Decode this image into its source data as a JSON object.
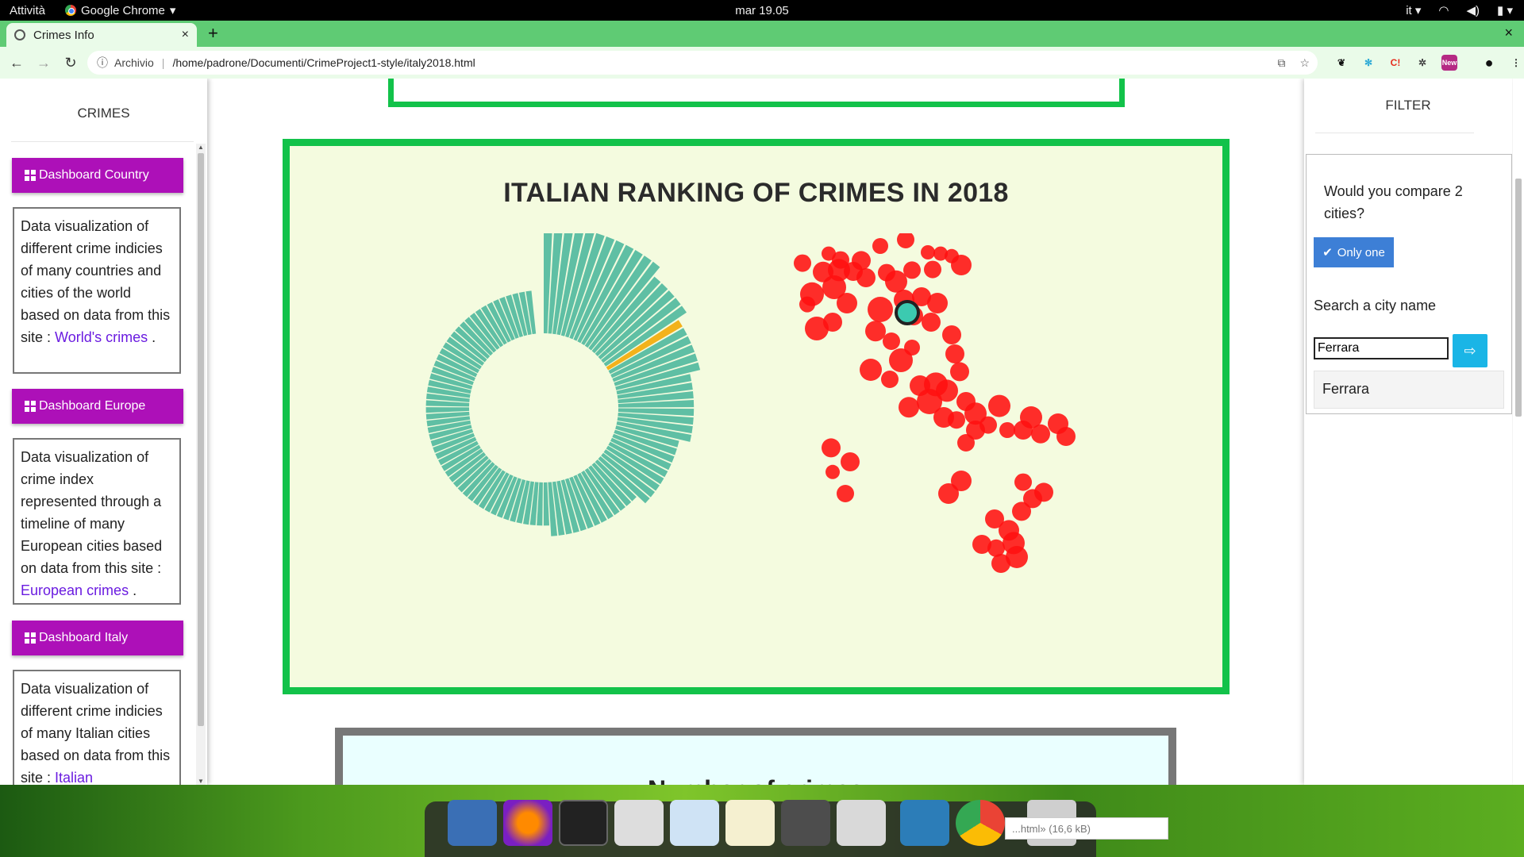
{
  "topbar": {
    "activities": "Attività",
    "app": "Google Chrome",
    "clock": "mar 19.05",
    "lang": "it"
  },
  "browser": {
    "tab_title": "Crimes Info",
    "secure_label": "Archivio",
    "url": "/home/padrone/Documenti/CrimeProject1-style/italy2018.html",
    "new_tab": "+",
    "close": "×"
  },
  "sidebar": {
    "title": "CRIMES",
    "items": [
      {
        "label": "Dashboard Country",
        "desc": "Data visualization of different crime indicies of many countries and cities of the world based on data from this site :",
        "link": "World's crimes",
        "tail": " ."
      },
      {
        "label": "Dashboard Europe",
        "desc": "Data visualization of crime index represented through a timeline of many European cities based on data from this site :",
        "link": "European crimes",
        "tail": " ."
      },
      {
        "label": "Dashboard Italy",
        "desc": "Data visualization of different crime indicies of many Italian cities based on data from this site :",
        "link": "Italian",
        "tail": ""
      }
    ]
  },
  "main": {
    "chart_title": "ITALIAN RANKING OF CRIMES IN 2018",
    "bottom_title": "Number of crimes",
    "colors": {
      "bars": "#5fbfa4",
      "highlight": "#f3b21b",
      "dots": "#ff1010",
      "selected": "#3ccab0",
      "frame": "#12c24a"
    }
  },
  "chart_data": {
    "type": "bar",
    "layout": "radial",
    "bar_count": 106,
    "highlight_index": 17,
    "highlighted_city": "Ferrara",
    "values": [
      10,
      10,
      10,
      10,
      10,
      10,
      10,
      10,
      10,
      10,
      10,
      10,
      9,
      9,
      9,
      9,
      9,
      8,
      8,
      8,
      8,
      8,
      8,
      7,
      7,
      7,
      7,
      7,
      7,
      7,
      7,
      6,
      6,
      6,
      6,
      6,
      6,
      6,
      6,
      6,
      5,
      5,
      5,
      5,
      5,
      5,
      5,
      5,
      5,
      5,
      5,
      5,
      5,
      4,
      4,
      4,
      4,
      4,
      4,
      4,
      4,
      4,
      4,
      4,
      4,
      4,
      4,
      4,
      4,
      4,
      4,
      4,
      4,
      4,
      4,
      4,
      4,
      4,
      4,
      4,
      4,
      4,
      4,
      4,
      4,
      4,
      4,
      4,
      4,
      4,
      4,
      4,
      4,
      4,
      4,
      4,
      4,
      4,
      4,
      4,
      4,
      4,
      4,
      4,
      4,
      4
    ],
    "title": "ITALIAN RANKING OF CRIMES IN 2018"
  },
  "filter": {
    "title": "FILTER",
    "question": "Would you compare 2 cities?",
    "only_one": "Only one",
    "search_label": "Search a city name",
    "search_value": "Ferrara",
    "go": "⇨",
    "suggestion": "Ferrara"
  },
  "download": {
    "text": "...html» (16,6 kB)"
  }
}
